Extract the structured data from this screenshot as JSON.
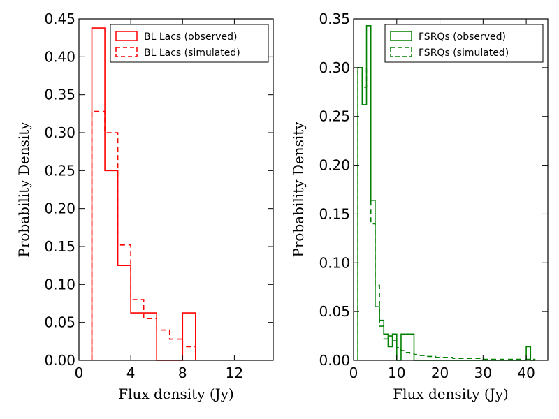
{
  "chart_data": [
    {
      "type": "histogram-step",
      "xlabel": "Flux density (Jy)",
      "ylabel": "Probability Density",
      "xlim": [
        0,
        15
      ],
      "ylim": [
        0,
        0.45
      ],
      "xticks": [
        0,
        4,
        8,
        12
      ],
      "yticks": [
        0,
        0.05,
        0.1,
        0.15,
        0.2,
        0.25,
        0.3,
        0.35,
        0.4,
        0.45
      ],
      "xtick_labels": [
        "0",
        "4",
        "8",
        "12"
      ],
      "ytick_labels": [
        "0.00",
        "0.05",
        "0.10",
        "0.15",
        "0.20",
        "0.25",
        "0.30",
        "0.35",
        "0.40",
        "0.45"
      ],
      "legend_position": "top-right",
      "series": [
        {
          "name": "BL Lacs (observed)",
          "color": "#ff0000",
          "dash": false,
          "edges": [
            1,
            2,
            3,
            4,
            5,
            6,
            7,
            8,
            9
          ],
          "values": [
            0.438,
            0.25,
            0.125,
            0.0625,
            0.0625,
            0,
            0,
            0.0625
          ]
        },
        {
          "name": "BL Lacs (simulated)",
          "color": "#ff0000",
          "dash": true,
          "edges": [
            1,
            2,
            3,
            4,
            5,
            6,
            7,
            8,
            9
          ],
          "values": [
            0.328,
            0.3,
            0.152,
            0.08,
            0.055,
            0.04,
            0.028,
            0.018
          ]
        }
      ]
    },
    {
      "type": "histogram-step",
      "xlabel": "Flux density (Jy)",
      "ylabel": "Probability Density",
      "xlim": [
        0,
        45
      ],
      "ylim": [
        0,
        0.35
      ],
      "xticks": [
        0,
        10,
        20,
        30,
        40
      ],
      "yticks": [
        0,
        0.05,
        0.1,
        0.15,
        0.2,
        0.25,
        0.3,
        0.35
      ],
      "xtick_labels": [
        "0",
        "10",
        "20",
        "30",
        "40"
      ],
      "ytick_labels": [
        "0.00",
        "0.05",
        "0.10",
        "0.15",
        "0.20",
        "0.25",
        "0.30",
        "0.35"
      ],
      "legend_position": "top-right",
      "series": [
        {
          "name": "FSRQs (observed)",
          "color": "#008000",
          "dash": false,
          "edges": [
            1,
            2,
            3,
            4,
            5,
            6,
            7,
            8,
            9,
            10,
            11,
            12,
            13,
            14,
            15,
            16,
            17,
            18,
            19,
            20,
            21,
            22,
            23,
            24,
            25,
            26,
            27,
            28,
            29,
            30,
            31,
            32,
            33,
            34,
            35,
            36,
            37,
            38,
            39,
            40,
            41,
            42
          ],
          "values": [
            0.3,
            0.262,
            0.343,
            0.164,
            0.055,
            0.041,
            0.027,
            0.014,
            0.027,
            0,
            0.027,
            0.027,
            0.027,
            0,
            0,
            0,
            0,
            0,
            0,
            0,
            0,
            0,
            0,
            0,
            0,
            0,
            0,
            0,
            0,
            0,
            0,
            0,
            0,
            0,
            0,
            0,
            0,
            0,
            0,
            0.014,
            0
          ]
        },
        {
          "name": "FSRQs (simulated)",
          "color": "#008000",
          "dash": true,
          "edges": [
            1,
            2,
            3,
            4,
            5,
            6,
            7,
            8,
            9,
            10,
            11,
            12,
            13,
            14,
            15,
            16,
            17,
            18,
            19,
            20,
            21,
            22,
            23,
            24,
            25,
            26,
            27,
            28,
            29,
            30,
            31,
            32,
            33,
            34,
            35,
            36,
            37,
            38,
            39,
            40,
            41,
            42
          ],
          "values": [
            0.3,
            0.28,
            0.3,
            0.14,
            0.077,
            0.035,
            0.022,
            0.025,
            0.02,
            0.013,
            0.01,
            0.008,
            0.007,
            0.006,
            0.005,
            0.005,
            0.004,
            0.004,
            0.003,
            0.003,
            0.003,
            0.003,
            0.002,
            0.002,
            0.002,
            0.002,
            0.002,
            0.002,
            0.002,
            0.001,
            0.001,
            0.001,
            0.001,
            0.001,
            0.001,
            0.001,
            0.001,
            0.001,
            0.001,
            0.001,
            0.001
          ]
        }
      ]
    }
  ]
}
